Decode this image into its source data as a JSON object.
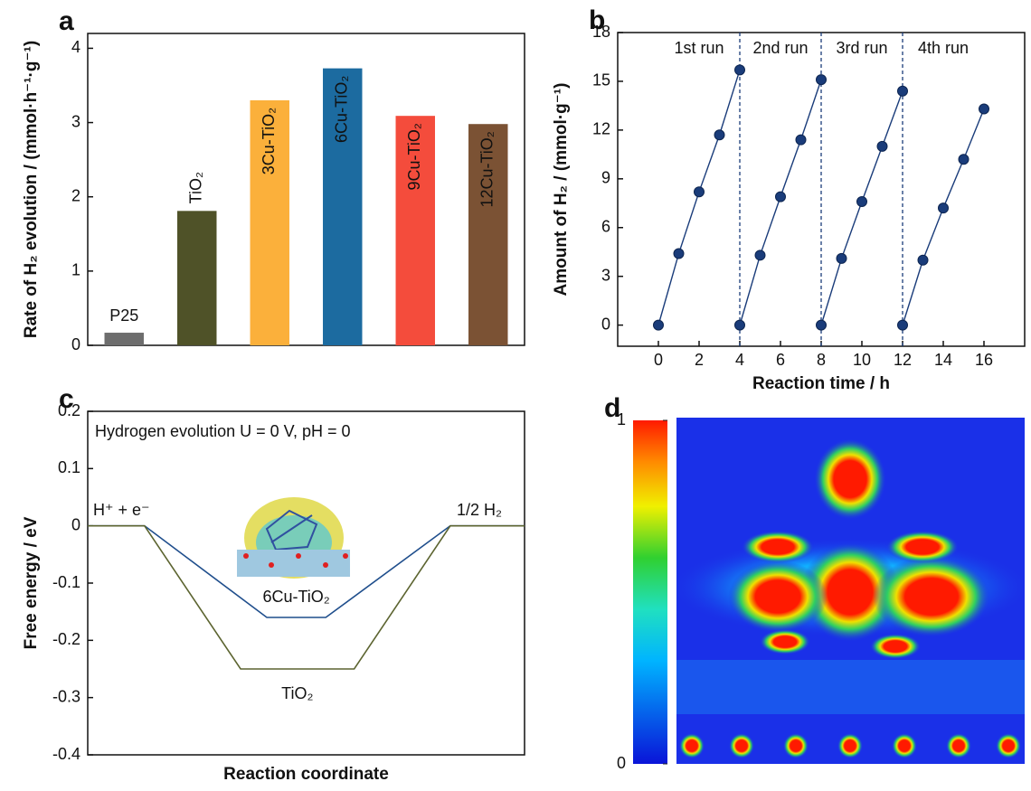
{
  "chart_data": [
    {
      "type": "bar",
      "panel": "a",
      "ylabel": "Rate of H₂ evolution / (mmol·h⁻¹·g⁻¹)",
      "categories": [
        "P25",
        "TiO₂",
        "3Cu-TiO₂",
        "6Cu-TiO₂",
        "9Cu-TiO₂",
        "12Cu-TiO₂"
      ],
      "values": [
        0.17,
        1.81,
        3.3,
        3.73,
        3.09,
        2.98
      ],
      "colors": [
        "#6d6d6d",
        "#4f5228",
        "#fbb03b",
        "#1c6ba0",
        "#f44c3c",
        "#7b5234"
      ],
      "ylim": [
        0,
        4.2
      ],
      "yticks": [
        0,
        1,
        2,
        3,
        4
      ]
    },
    {
      "type": "line",
      "panel": "b",
      "xlabel": "Reaction time / h",
      "ylabel": "Amount of H₂ / (mmol·g⁻¹)",
      "color": "#1a3c7a",
      "series": [
        {
          "name": "1st run",
          "x": [
            0,
            1,
            2,
            3,
            4
          ],
          "values": [
            0,
            4.4,
            8.2,
            11.7,
            15.7
          ]
        },
        {
          "name": "2nd run",
          "x": [
            4,
            5,
            6,
            7,
            8
          ],
          "values": [
            0,
            4.3,
            7.9,
            11.4,
            15.1
          ]
        },
        {
          "name": "3rd run",
          "x": [
            8,
            9,
            10,
            11,
            12
          ],
          "values": [
            0,
            4.1,
            7.6,
            11.0,
            14.4
          ]
        },
        {
          "name": "4th run",
          "x": [
            12,
            13,
            14,
            15,
            16
          ],
          "values": [
            0,
            4.0,
            7.2,
            10.2,
            13.3
          ]
        }
      ],
      "vlines": [
        4,
        8,
        12
      ],
      "xlim": [
        -2,
        18
      ],
      "xticks": [
        0,
        2,
        4,
        6,
        8,
        10,
        12,
        14,
        16
      ],
      "ylim": [
        -1.3,
        18
      ],
      "yticks": [
        0,
        3,
        6,
        9,
        12,
        15,
        18
      ]
    },
    {
      "type": "line",
      "panel": "c",
      "xlabel": "Reaction coordinate",
      "ylabel": "Free energy / eV",
      "annotations": [
        "Hydrogen evolution U = 0 V, pH = 0",
        "H⁺ + e⁻",
        "1/2 H₂"
      ],
      "series": [
        {
          "name": "6Cu-TiO₂",
          "color": "#1f4e8c",
          "x": [
            0,
            1.3,
            4.1,
            5.45,
            8.3,
            10
          ],
          "values": [
            0,
            0,
            -0.16,
            -0.16,
            0,
            0
          ]
        },
        {
          "name": "TiO₂",
          "color": "#5c6430",
          "x": [
            0,
            1.3,
            3.5,
            6.1,
            8.3,
            10
          ],
          "values": [
            0,
            0,
            -0.25,
            -0.25,
            0,
            0
          ]
        }
      ],
      "xlim": [
        0,
        10
      ],
      "ylim": [
        -0.4,
        0.2
      ],
      "yticks": [
        -0.4,
        -0.3,
        -0.2,
        -0.1,
        0,
        0.1,
        0.2
      ]
    },
    {
      "type": "heatmap",
      "panel": "d",
      "clim": [
        0,
        1
      ],
      "cticks": [
        0,
        1
      ]
    }
  ]
}
